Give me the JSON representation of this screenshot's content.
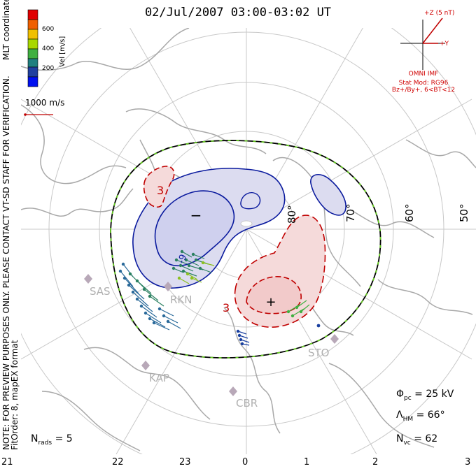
{
  "header": {
    "title": "02/Jul/2007 03:00-03:02 UT"
  },
  "color_scale": {
    "unit_label": "Vel [m/s]",
    "tick_labels": [
      "600",
      "400",
      "200"
    ],
    "colors": [
      "#e00000",
      "#f06000",
      "#f0c000",
      "#a8d800",
      "#40b040",
      "#208080",
      "#2040a0",
      "#0010f0"
    ]
  },
  "left_notes": {
    "coords": "MLT coordinates",
    "preview": "NOTE: FOR PREVIEW PURPOSES ONLY. PLEASE CONTACT VT-SD STAFF FOR VERIFICATION.",
    "fit": "FitOrder: 8, mapEX format"
  },
  "reference_vector": {
    "label": "1000 m/s"
  },
  "imf": {
    "z_label": "+Z (5 nT)",
    "y_label": "+Y",
    "source": "OMNI IMF",
    "model": "Stat Mod: RG96",
    "condition": "Bz+/By+, 6<BT<12"
  },
  "latitude_labels": [
    "80°",
    "70°",
    "60°",
    "50°"
  ],
  "radar_sites": [
    "SAS",
    "RKN",
    "KAP",
    "CBR",
    "STO"
  ],
  "contour_labels": {
    "minus": "−",
    "plus": "+",
    "three_a": "3",
    "three_b": "3",
    "minus_label": "-9"
  },
  "stats": {
    "phi_pc_value": "= 25 kV",
    "lambda_hm_value": "= 66°",
    "nvc_value": "= 62",
    "nrads_value": "= 5"
  },
  "mlt_ticks": [
    "21",
    "22",
    "23",
    "0",
    "1",
    "2",
    "3"
  ],
  "colors": {
    "negative_contour": "#0a1a9e",
    "negative_fill": "#dcdcf0",
    "positive_contour": "#c00000",
    "positive_fill": "#f5dada",
    "grid": "#c8c8c8",
    "coast": "#a8a8a8",
    "hmb": "#000000",
    "hmb_dash": "#66cc22"
  }
}
